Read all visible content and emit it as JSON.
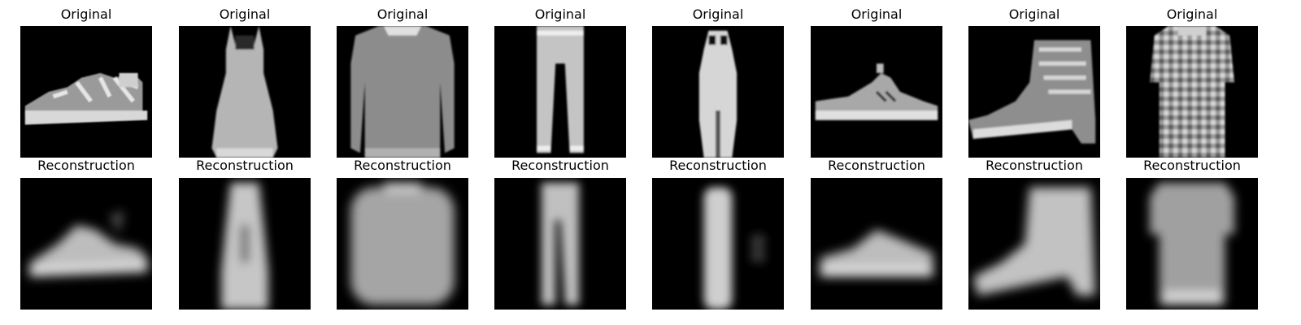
{
  "figure": {
    "row_titles": {
      "original": "Original",
      "reconstruction": "Reconstruction"
    },
    "columns": [
      {
        "item": "sandal-icon"
      },
      {
        "item": "dress-icon"
      },
      {
        "item": "pullover-icon"
      },
      {
        "item": "trouser-icon"
      },
      {
        "item": "narrow-dress-icon"
      },
      {
        "item": "sneaker-icon"
      },
      {
        "item": "ankle-boot-icon"
      },
      {
        "item": "shirt-icon"
      }
    ]
  }
}
